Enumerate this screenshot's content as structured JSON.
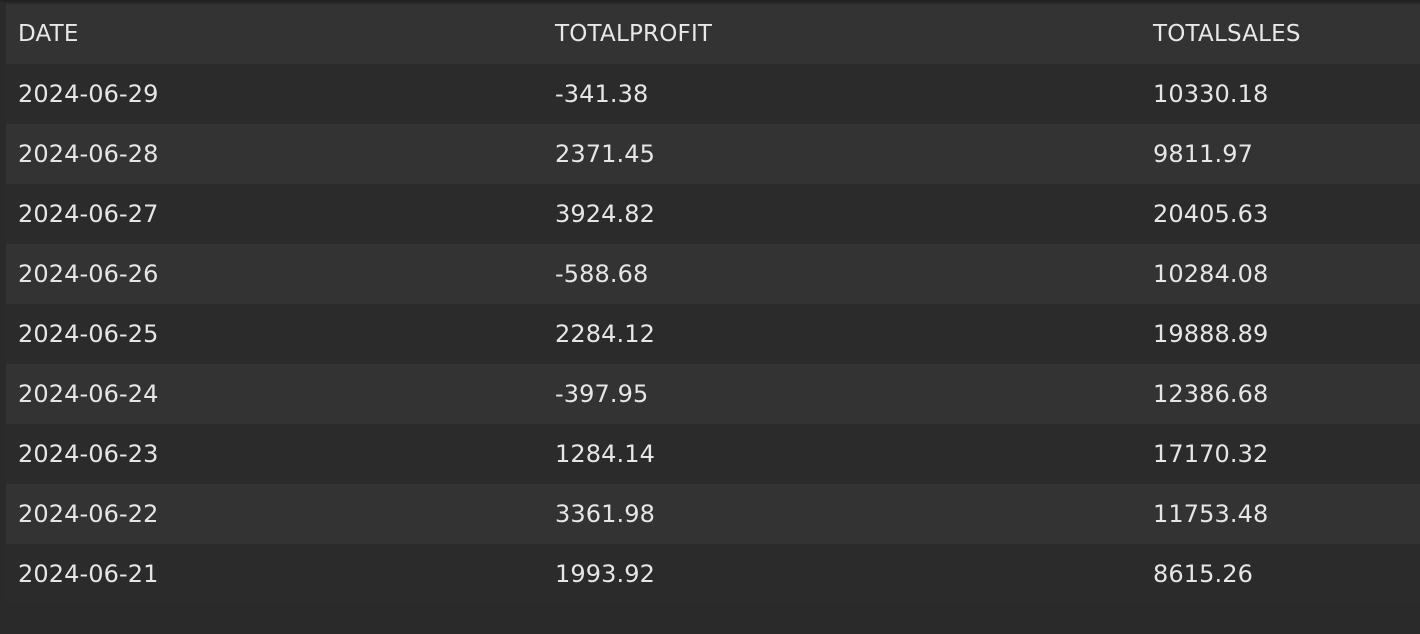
{
  "table": {
    "columns": [
      "DATE",
      "TOTALPROFIT",
      "TOTALSALES"
    ],
    "rows": [
      [
        "2024-06-29",
        "-341.38",
        "10330.18"
      ],
      [
        "2024-06-28",
        "2371.45",
        "9811.97"
      ],
      [
        "2024-06-27",
        "3924.82",
        "20405.63"
      ],
      [
        "2024-06-26",
        "-588.68",
        "10284.08"
      ],
      [
        "2024-06-25",
        "2284.12",
        "19888.89"
      ],
      [
        "2024-06-24",
        "-397.95",
        "12386.68"
      ],
      [
        "2024-06-23",
        "1284.14",
        "17170.32"
      ],
      [
        "2024-06-22",
        "3361.98",
        "11753.48"
      ],
      [
        "2024-06-21",
        "1993.92",
        "8615.26"
      ]
    ]
  },
  "colors": {
    "background": "#2a2a2a",
    "header_background": "#333333",
    "row_odd": "#2b2b2b",
    "row_even": "#333333",
    "text": "#e6e6e6"
  }
}
